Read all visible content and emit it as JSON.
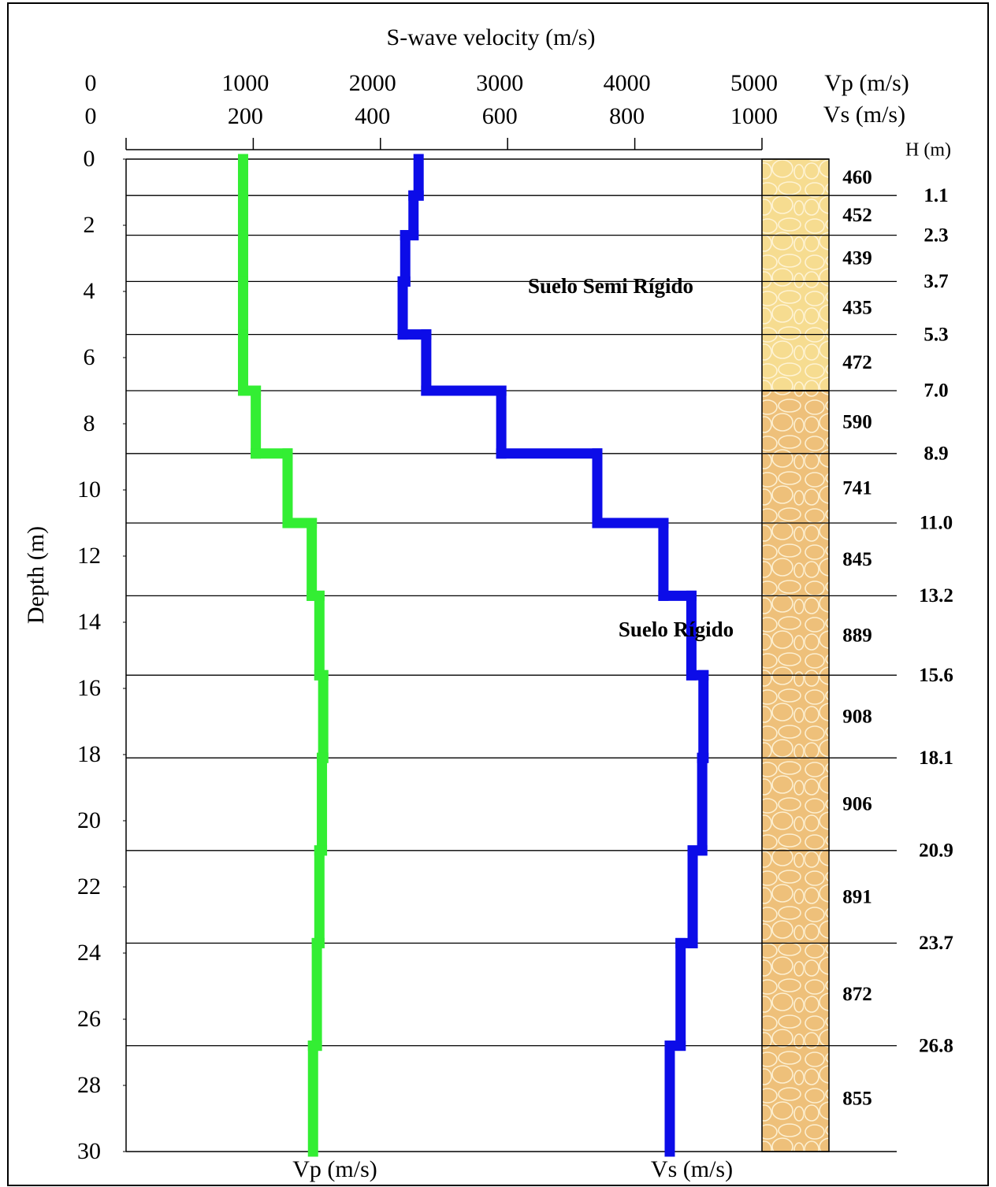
{
  "chart_data": {
    "type": "step-profile",
    "title": "S-wave velocity (m/s)",
    "ylabel": "Depth (m)",
    "depth_label": "H (m)",
    "xlabel": "Vp (m/s)",
    "x2label": "Vs (m/s)",
    "xlim": [
      0,
      5000
    ],
    "xticks": [
      0,
      1000,
      2000,
      3000,
      4000,
      5000
    ],
    "x2lim": [
      0,
      1000
    ],
    "x2ticks": [
      0,
      200,
      400,
      600,
      800,
      1000
    ],
    "ylim": [
      0,
      30
    ],
    "yticks": [
      0,
      2,
      4,
      6,
      8,
      10,
      12,
      14,
      16,
      18,
      20,
      22,
      24,
      26,
      28,
      30
    ],
    "boundaries": [
      1.1,
      2.3,
      3.7,
      5.3,
      {
        "value": 7,
        "label": "7.0"
      },
      8.9,
      {
        "value": 11,
        "label": "11.0"
      },
      13.2,
      15.6,
      18.1,
      20.9,
      23.7,
      26.8
    ],
    "series": [
      {
        "name": "Vp (m/s)",
        "color": "#33ee33",
        "values": [
          920,
          920,
          920,
          920,
          920,
          1020,
          1270,
          1460,
          1520,
          1550,
          1540,
          1520,
          1500,
          1470
        ]
      },
      {
        "name": "Vs (m/s)",
        "color": "#0c0ce8",
        "axis": "x2",
        "values": [
          460,
          452,
          439,
          435,
          472,
          590,
          741,
          845,
          889,
          908,
          906,
          891,
          872,
          855
        ]
      }
    ],
    "strata_colors": [
      "#f6dc90",
      "#eec07a"
    ],
    "stratum_break": 7,
    "annotations": [
      {
        "text": "Suelo Semi Rígido"
      },
      {
        "text": "Suelo Rígido"
      }
    ]
  }
}
